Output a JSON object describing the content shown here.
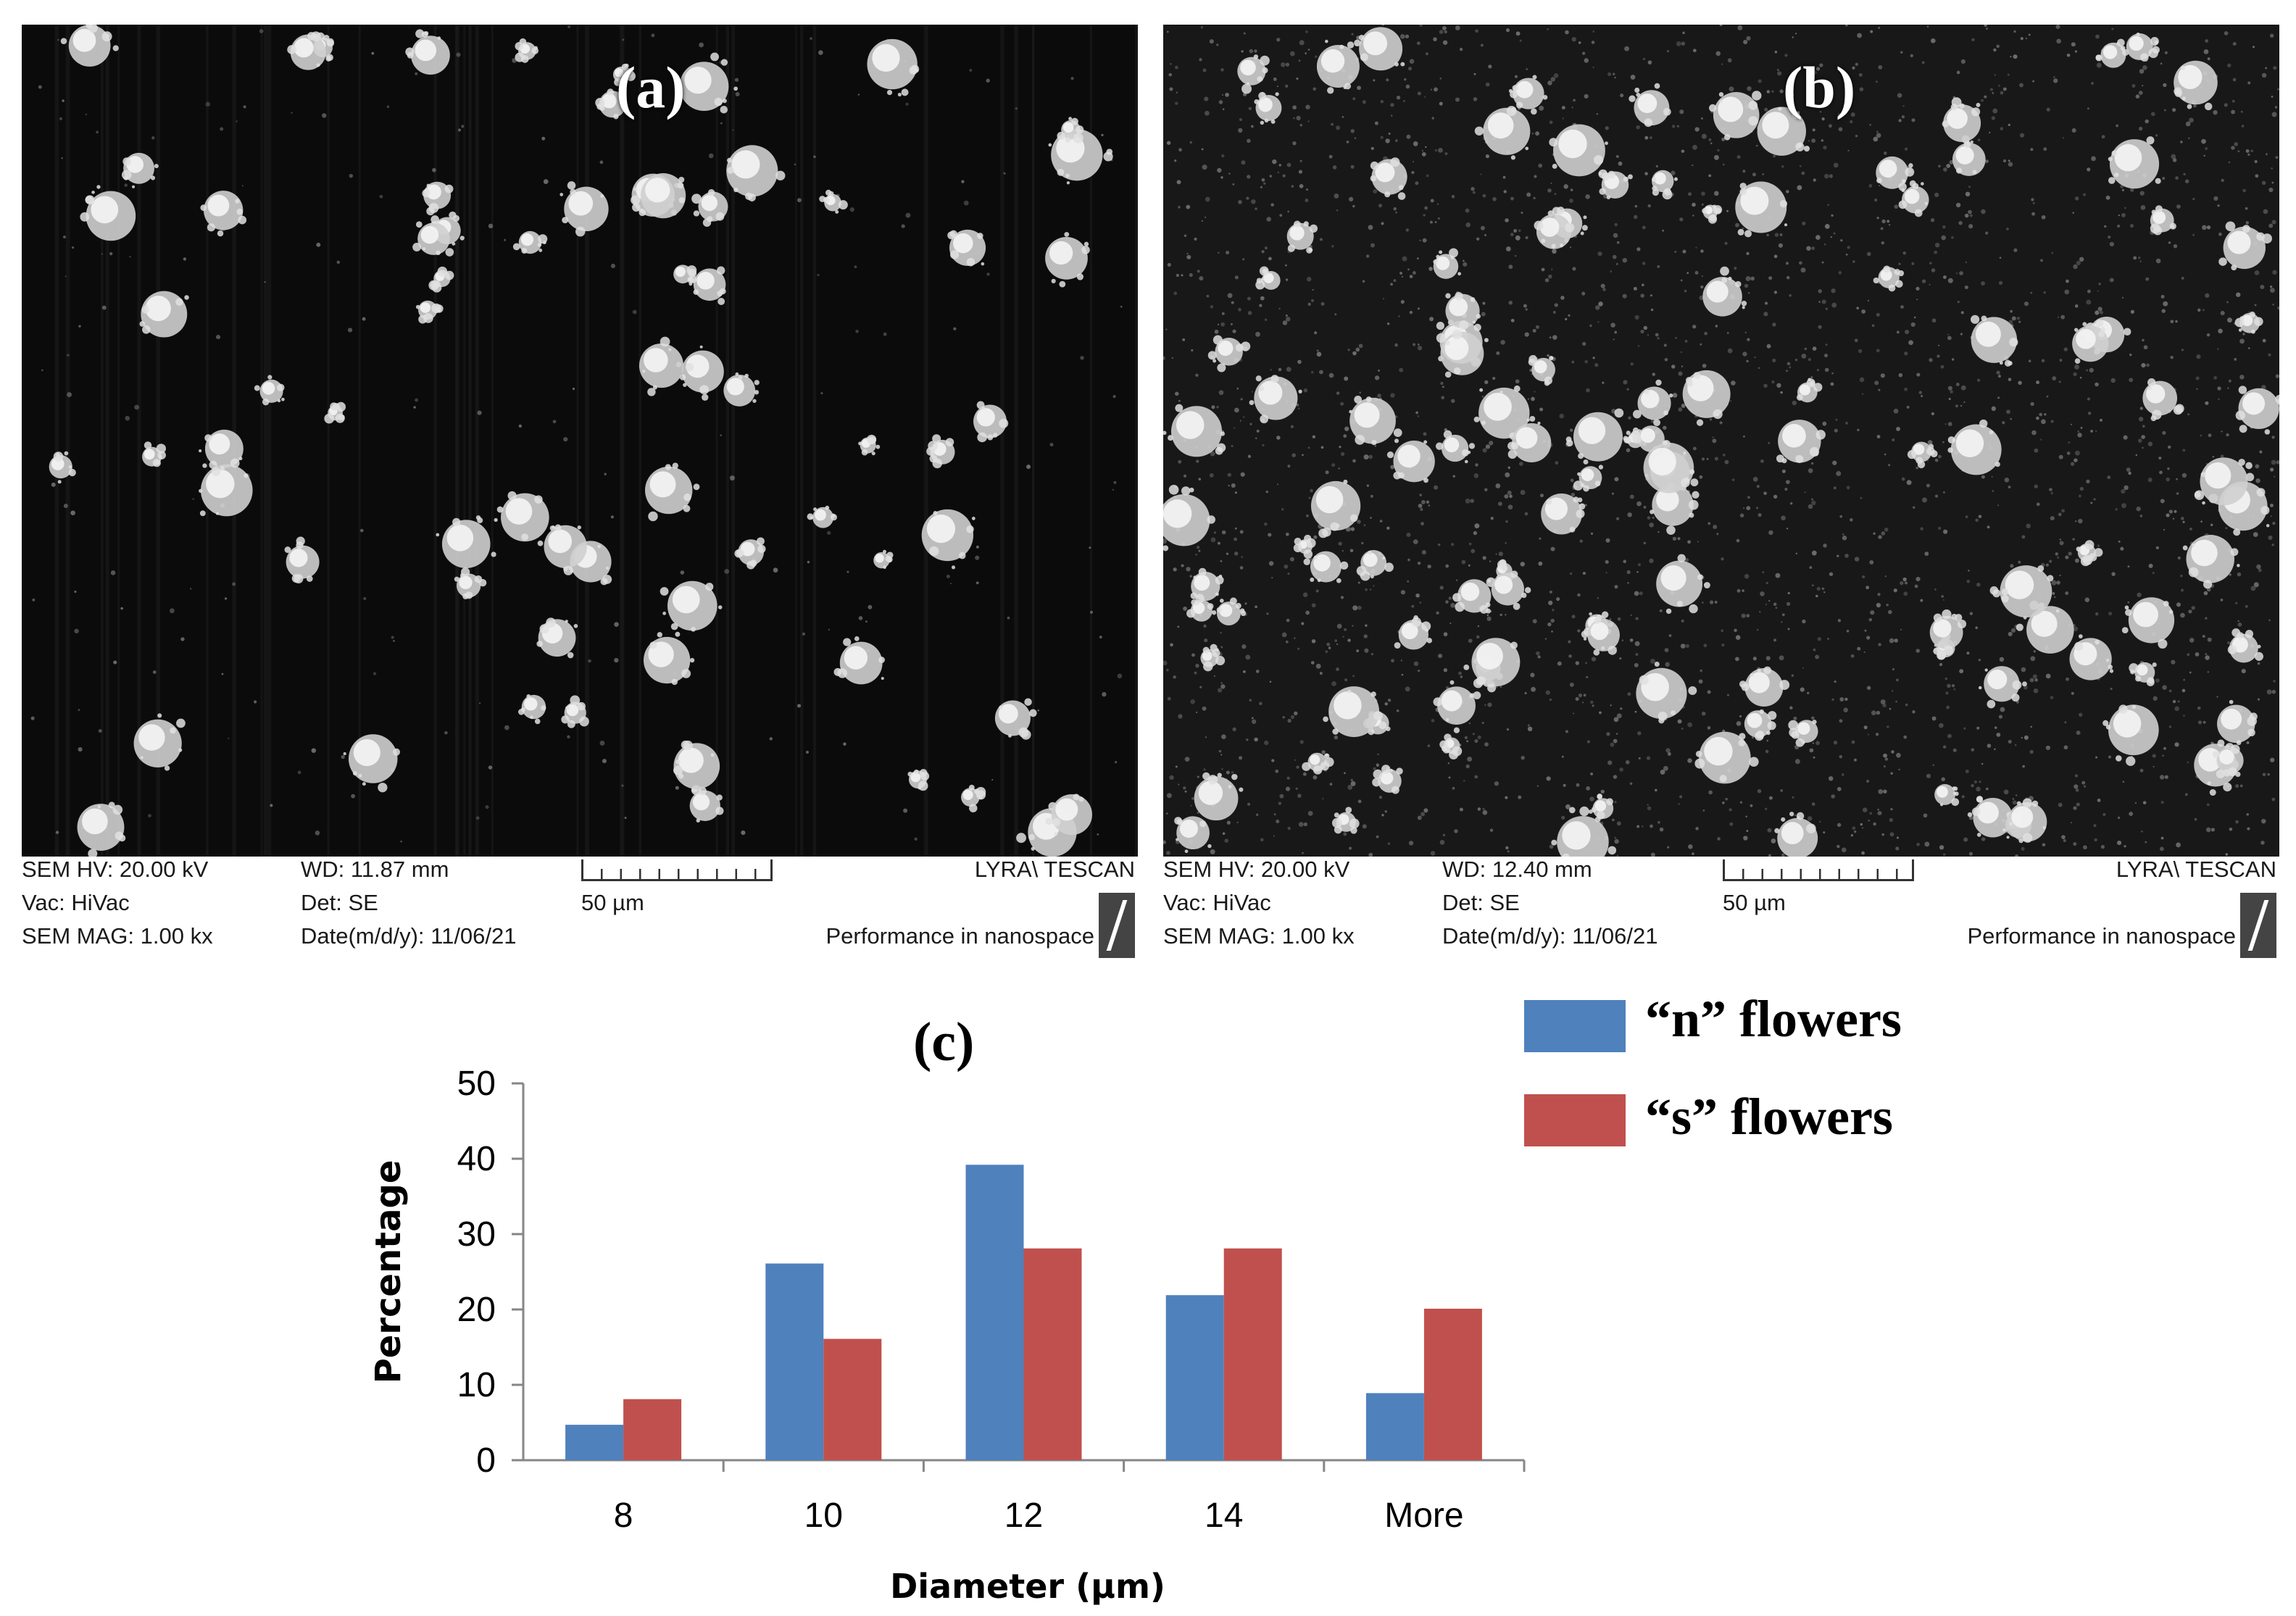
{
  "panel_a": {
    "label": "(a)",
    "info": {
      "hv": "SEM HV: 20.00 kV",
      "vac": "Vac: HiVac",
      "mag": "SEM MAG: 1.00 kx",
      "wd": "WD: 11.87 mm",
      "det": "Det: SE",
      "date": "Date(m/d/y): 11/06/21",
      "scale": "50 µm",
      "brand": "LYRA\\ TESCAN",
      "tagline": "Performance in nanospace"
    }
  },
  "panel_b": {
    "label": "(b)",
    "info": {
      "hv": "SEM HV: 20.00 kV",
      "vac": "Vac: HiVac",
      "mag": "SEM MAG: 1.00 kx",
      "wd": "WD: 12.40 mm",
      "det": "Det: SE",
      "date": "Date(m/d/y): 11/06/21",
      "scale": "50 µm",
      "brand": "LYRA\\ TESCAN",
      "tagline": "Performance in nanospace"
    }
  },
  "colors": {
    "series_n": "#4f81bd",
    "series_s": "#c0504d"
  },
  "chart_data": {
    "type": "bar",
    "title": "(c)",
    "categories": [
      "8",
      "10",
      "12",
      "14",
      "More"
    ],
    "series": [
      {
        "name": "“n” flowers",
        "values": [
          4.7,
          26.1,
          39.2,
          21.9,
          8.9
        ]
      },
      {
        "name": " “s” flowers",
        "values": [
          8.1,
          16.1,
          28.1,
          28.1,
          20.1
        ]
      }
    ],
    "xlabel": "Diameter  (µm)",
    "ylabel": "Percentage",
    "ylim": [
      0,
      50
    ],
    "yticks": [
      "0",
      "10",
      "20",
      "30",
      "40",
      "50"
    ],
    "grid": false,
    "legend": "top-right"
  }
}
